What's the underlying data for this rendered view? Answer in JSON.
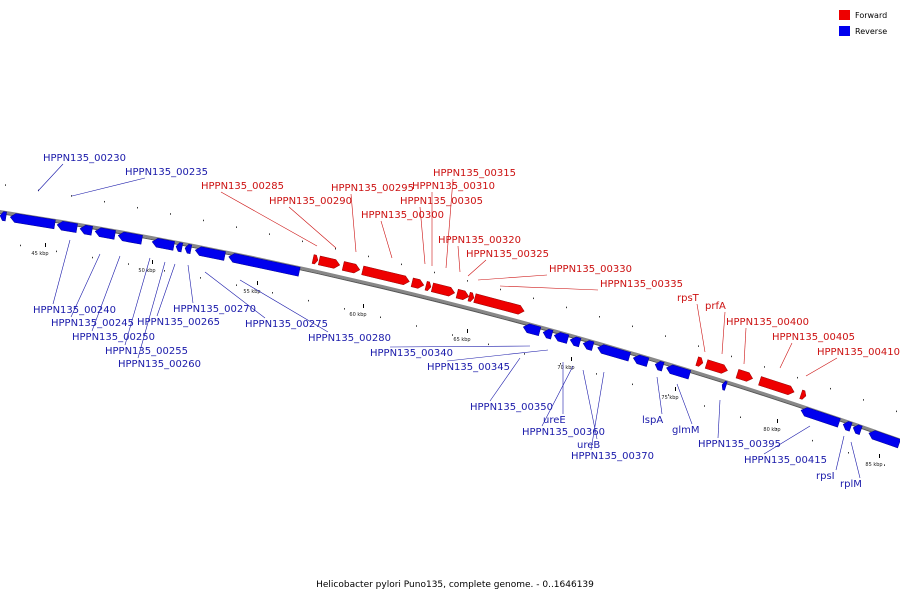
{
  "caption": "Helicobacter pylori Puno135, complete genome. - 0..1646139",
  "legend": [
    {
      "label": "Forward",
      "color": "#ee0000"
    },
    {
      "label": "Reverse",
      "color": "#0000ee"
    }
  ],
  "colors": {
    "forward": "#ee0000",
    "reverse": "#0000ee",
    "forward_text": "#cc1111",
    "reverse_text": "#1a1aaa",
    "backbone": "#888888"
  },
  "scale_ticks": [
    "45 kbp",
    "50 kbp",
    "55 kbp",
    "60 kbp",
    "65 kbp",
    "70 kbp",
    "75 kbp",
    "80 kbp",
    "85 kbp"
  ],
  "forward_genes": [
    "HPPN135_00285",
    "HPPN135_00290",
    "HPPN135_00295",
    "HPPN135_00300",
    "HPPN135_00305",
    "HPPN135_00310",
    "HPPN135_00315",
    "HPPN135_00320",
    "HPPN135_00325",
    "HPPN135_00330",
    "HPPN135_00335",
    "rpsT",
    "prfA",
    "HPPN135_00400",
    "HPPN135_00405",
    "HPPN135_00410"
  ],
  "reverse_genes": [
    "HPPN135_00230",
    "HPPN135_00235",
    "HPPN135_00240",
    "HPPN135_00245",
    "HPPN135_00250",
    "HPPN135_00255",
    "HPPN135_00260",
    "HPPN135_00265",
    "HPPN135_00270",
    "HPPN135_00275",
    "HPPN135_00280",
    "HPPN135_00340",
    "HPPN135_00345",
    "HPPN135_00350",
    "ureE",
    "HPPN135_00360",
    "ureB",
    "HPPN135_00370",
    "lspA",
    "glmM",
    "HPPN135_00395",
    "HPPN135_00415",
    "rpsI",
    "rplM"
  ]
}
